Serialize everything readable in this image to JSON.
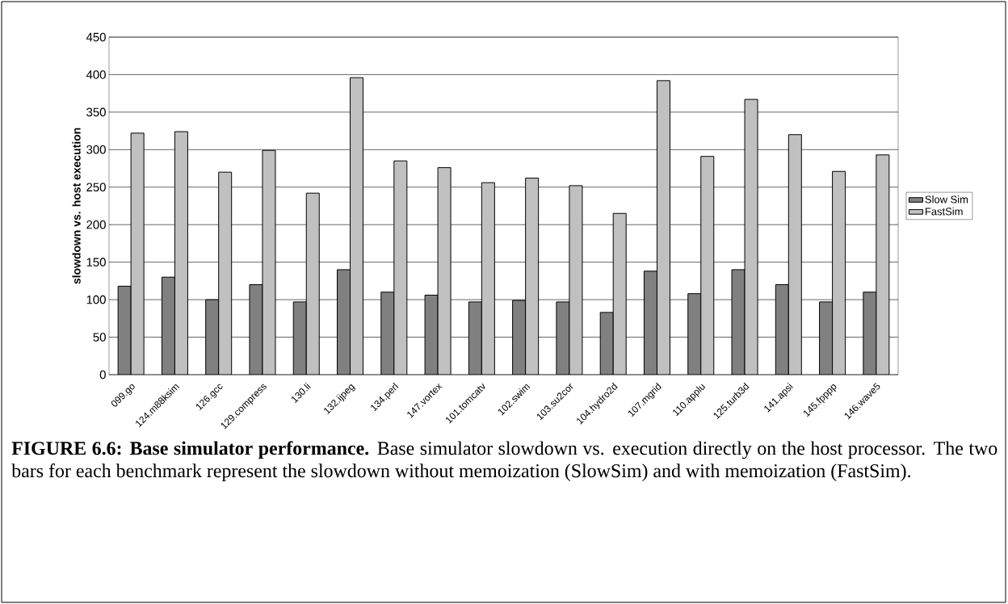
{
  "chart_data": {
    "type": "bar",
    "ylabel": "slowdown vs. host execution",
    "categories": [
      "099.go",
      "124.m88ksim",
      "126.gcc",
      "129.compress",
      "130.li",
      "132.ijpeg",
      "134.perl",
      "147.vortex",
      "101.tomcatv",
      "102.swim",
      "103.su2cor",
      "104.hydro2d",
      "107.mgrid",
      "110.applu",
      "125.turb3d",
      "141.apsi",
      "145.fpppp",
      "146.wave5"
    ],
    "series": [
      {
        "name": "Slow Sim",
        "color": "#808080",
        "values": [
          118,
          130,
          100,
          120,
          97,
          140,
          110,
          106,
          97,
          99,
          97,
          83,
          138,
          108,
          140,
          120,
          97,
          110
        ]
      },
      {
        "name": "FastSim",
        "color": "#c0c0c0",
        "values": [
          322,
          324,
          270,
          299,
          242,
          396,
          285,
          276,
          256,
          262,
          252,
          215,
          392,
          291,
          367,
          320,
          271,
          293
        ]
      }
    ],
    "ylim": [
      0,
      450
    ],
    "yticks": [
      0,
      50,
      100,
      150,
      200,
      250,
      300,
      350,
      400,
      450
    ],
    "grid": "y",
    "legend": "right",
    "annotations": [
      "**FIGURE 6.6: Base simulator performance.** Base simulator slowdown vs. execution directly on the host processor. The two bars for each benchmark represent the slowdown without memoization (SlowSim) and with memoization (FastSim)."
    ]
  }
}
